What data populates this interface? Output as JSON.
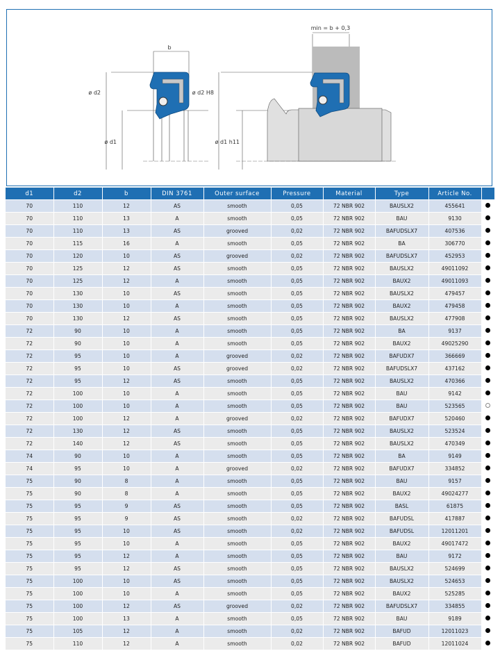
{
  "diagram": {
    "left": {
      "width_label": "b",
      "outer_label": "ø d2",
      "inner_label": "ø d1"
    },
    "right": {
      "housing_label": "min = b + 0,3",
      "outer_label": "ø d2 H8",
      "inner_label": "ø d1 h11"
    },
    "seal_color": "#1f6fb3"
  },
  "table": {
    "headers": [
      "d1",
      "d2",
      "b",
      "DIN 3761",
      "Outer surface",
      "Pressure",
      "Material",
      "Type",
      "Article No.",
      ""
    ],
    "rows": [
      [
        "70",
        "110",
        "12",
        "AS",
        "smooth",
        "0,05",
        "72 NBR 902",
        "BAUSLX2",
        "455641",
        "filled"
      ],
      [
        "70",
        "110",
        "13",
        "A",
        "smooth",
        "0,05",
        "72 NBR 902",
        "BAU",
        "9130",
        "filled"
      ],
      [
        "70",
        "110",
        "13",
        "AS",
        "grooved",
        "0,02",
        "72 NBR 902",
        "BAFUDSLX7",
        "407536",
        "filled"
      ],
      [
        "70",
        "115",
        "16",
        "A",
        "smooth",
        "0,05",
        "72 NBR 902",
        "BA",
        "306770",
        "filled"
      ],
      [
        "70",
        "120",
        "10",
        "AS",
        "grooved",
        "0,02",
        "72 NBR 902",
        "BAFUDSLX7",
        "452953",
        "filled"
      ],
      [
        "70",
        "125",
        "12",
        "AS",
        "smooth",
        "0,05",
        "72 NBR 902",
        "BAUSLX2",
        "49011092",
        "filled"
      ],
      [
        "70",
        "125",
        "12",
        "A",
        "smooth",
        "0,05",
        "72 NBR 902",
        "BAUX2",
        "49011093",
        "filled"
      ],
      [
        "70",
        "130",
        "10",
        "AS",
        "smooth",
        "0,05",
        "72 NBR 902",
        "BAUSLX2",
        "479457",
        "filled"
      ],
      [
        "70",
        "130",
        "10",
        "A",
        "smooth",
        "0,05",
        "72 NBR 902",
        "BAUX2",
        "479458",
        "filled"
      ],
      [
        "70",
        "130",
        "12",
        "AS",
        "smooth",
        "0,05",
        "72 NBR 902",
        "BAUSLX2",
        "477908",
        "filled"
      ],
      [
        "72",
        "90",
        "10",
        "A",
        "smooth",
        "0,05",
        "72 NBR 902",
        "BA",
        "9137",
        "filled"
      ],
      [
        "72",
        "90",
        "10",
        "A",
        "smooth",
        "0,05",
        "72 NBR 902",
        "BAUX2",
        "49025290",
        "filled"
      ],
      [
        "72",
        "95",
        "10",
        "A",
        "grooved",
        "0,02",
        "72 NBR 902",
        "BAFUDX7",
        "366669",
        "filled"
      ],
      [
        "72",
        "95",
        "10",
        "AS",
        "grooved",
        "0,02",
        "72 NBR 902",
        "BAFUDSLX7",
        "437162",
        "filled"
      ],
      [
        "72",
        "95",
        "12",
        "AS",
        "smooth",
        "0,05",
        "72 NBR 902",
        "BAUSLX2",
        "470366",
        "filled"
      ],
      [
        "72",
        "100",
        "10",
        "A",
        "smooth",
        "0,05",
        "72 NBR 902",
        "BAU",
        "9142",
        "filled"
      ],
      [
        "72",
        "100",
        "10",
        "A",
        "smooth",
        "0,05",
        "72 NBR 902",
        "BAU",
        "523565",
        "open"
      ],
      [
        "72",
        "100",
        "12",
        "A",
        "grooved",
        "0,02",
        "72 NBR 902",
        "BAFUDX7",
        "520460",
        "filled"
      ],
      [
        "72",
        "130",
        "12",
        "AS",
        "smooth",
        "0,05",
        "72 NBR 902",
        "BAUSLX2",
        "523524",
        "filled"
      ],
      [
        "72",
        "140",
        "12",
        "AS",
        "smooth",
        "0,05",
        "72 NBR 902",
        "BAUSLX2",
        "470349",
        "filled"
      ],
      [
        "74",
        "90",
        "10",
        "A",
        "smooth",
        "0,05",
        "72 NBR 902",
        "BA",
        "9149",
        "filled"
      ],
      [
        "74",
        "95",
        "10",
        "A",
        "grooved",
        "0,02",
        "72 NBR 902",
        "BAFUDX7",
        "334852",
        "filled"
      ],
      [
        "75",
        "90",
        "8",
        "A",
        "smooth",
        "0,05",
        "72 NBR 902",
        "BAU",
        "9157",
        "filled"
      ],
      [
        "75",
        "90",
        "8",
        "A",
        "smooth",
        "0,05",
        "72 NBR 902",
        "BAUX2",
        "49024277",
        "filled"
      ],
      [
        "75",
        "95",
        "9",
        "AS",
        "smooth",
        "0,05",
        "72 NBR 902",
        "BASL",
        "61875",
        "filled"
      ],
      [
        "75",
        "95",
        "9",
        "AS",
        "smooth",
        "0,02",
        "72 NBR 902",
        "BAFUDSL",
        "417887",
        "filled"
      ],
      [
        "75",
        "95",
        "10",
        "AS",
        "smooth",
        "0,02",
        "72 NBR 902",
        "BAFUDSL",
        "12011201",
        "filled"
      ],
      [
        "75",
        "95",
        "10",
        "A",
        "smooth",
        "0,05",
        "72 NBR 902",
        "BAUX2",
        "49017472",
        "filled"
      ],
      [
        "75",
        "95",
        "12",
        "A",
        "smooth",
        "0,05",
        "72 NBR 902",
        "BAU",
        "9172",
        "filled"
      ],
      [
        "75",
        "95",
        "12",
        "AS",
        "smooth",
        "0,05",
        "72 NBR 902",
        "BAUSLX2",
        "524699",
        "filled"
      ],
      [
        "75",
        "100",
        "10",
        "AS",
        "smooth",
        "0,05",
        "72 NBR 902",
        "BAUSLX2",
        "524653",
        "filled"
      ],
      [
        "75",
        "100",
        "10",
        "A",
        "smooth",
        "0,05",
        "72 NBR 902",
        "BAUX2",
        "525285",
        "filled"
      ],
      [
        "75",
        "100",
        "12",
        "AS",
        "grooved",
        "0,02",
        "72 NBR 902",
        "BAFUDSLX7",
        "334855",
        "filled"
      ],
      [
        "75",
        "100",
        "13",
        "A",
        "smooth",
        "0,05",
        "72 NBR 902",
        "BAU",
        "9189",
        "filled"
      ],
      [
        "75",
        "105",
        "12",
        "A",
        "smooth",
        "0,02",
        "72 NBR 902",
        "BAFUD",
        "12011023",
        "filled"
      ],
      [
        "75",
        "110",
        "12",
        "A",
        "smooth",
        "0,02",
        "72 NBR 902",
        "BAFUD",
        "12011024",
        "filled"
      ]
    ]
  }
}
